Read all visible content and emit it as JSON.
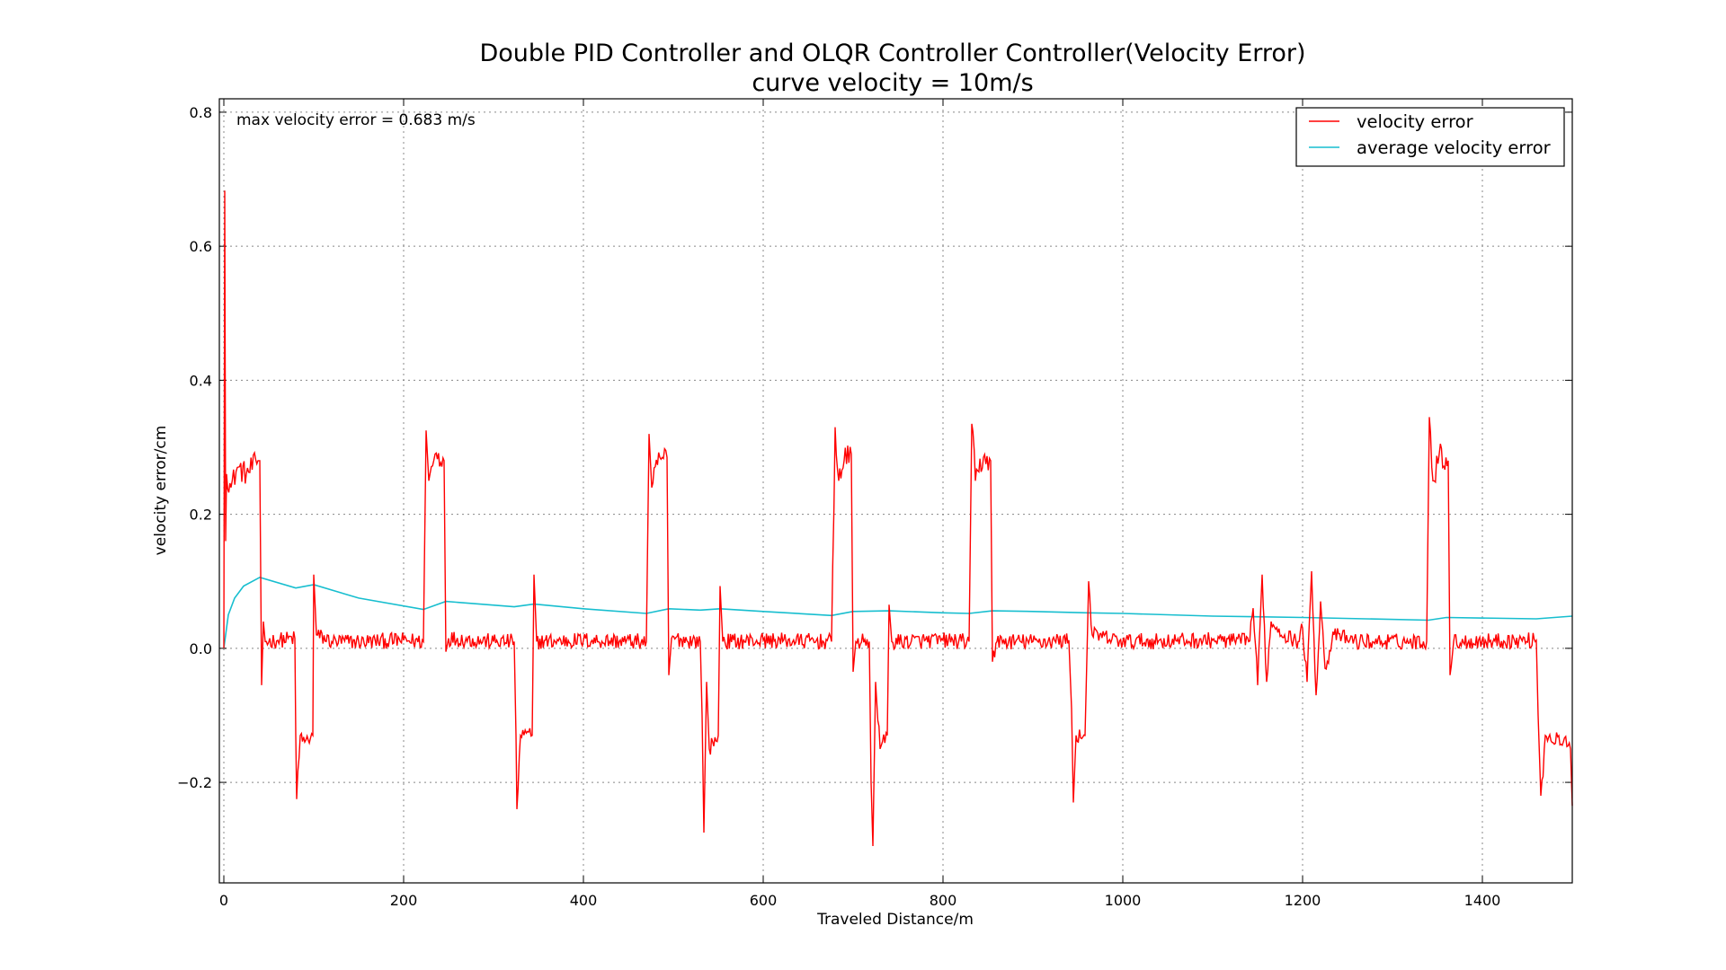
{
  "chart_data": {
    "type": "line",
    "title": "Double PID Controller and OLQR Controller Controller(Velocity Error)",
    "subtitle": "curve velocity = 10m/s",
    "xlabel": "Traveled Distance/m",
    "ylabel": "velocity error/cm",
    "xlim": [
      -5,
      1500
    ],
    "ylim": [
      -0.35,
      0.82
    ],
    "xticks": [
      0,
      200,
      400,
      600,
      800,
      1000,
      1200,
      1400
    ],
    "xtick_labels": [
      "0",
      "200",
      "400",
      "600",
      "800",
      "1000",
      "1200",
      "1400"
    ],
    "yticks": [
      -0.2,
      0.0,
      0.2,
      0.4,
      0.6,
      0.8
    ],
    "ytick_labels": [
      "−0.2",
      "0.0",
      "0.2",
      "0.4",
      "0.6",
      "0.8"
    ],
    "grid": true,
    "legend_position": "top-right",
    "annotation": "max velocity error = 0.683 m/s",
    "series": [
      {
        "name": "velocity error",
        "color": "#ff0000",
        "points": [
          [
            0,
            0.0
          ],
          [
            1,
            0.683
          ],
          [
            2,
            0.16
          ],
          [
            3,
            0.26
          ],
          [
            8,
            0.24
          ],
          [
            15,
            0.27
          ],
          [
            25,
            0.26
          ],
          [
            38,
            0.28
          ],
          [
            40,
            0.28
          ],
          [
            42,
            -0.055
          ],
          [
            44,
            0.04
          ],
          [
            46,
            0.01
          ],
          [
            60,
            0.012
          ],
          [
            79,
            0.015
          ],
          [
            80,
            -0.13
          ],
          [
            81,
            -0.225
          ],
          [
            85,
            -0.13
          ],
          [
            90,
            -0.14
          ],
          [
            99,
            -0.13
          ],
          [
            100,
            0.11
          ],
          [
            103,
            0.02
          ],
          [
            120,
            0.01
          ],
          [
            150,
            0.01
          ],
          [
            200,
            0.012
          ],
          [
            222,
            0.01
          ],
          [
            225,
            0.325
          ],
          [
            228,
            0.25
          ],
          [
            235,
            0.29
          ],
          [
            245,
            0.28
          ],
          [
            247,
            -0.005
          ],
          [
            250,
            0.015
          ],
          [
            300,
            0.01
          ],
          [
            323,
            0.01
          ],
          [
            325,
            -0.13
          ],
          [
            326,
            -0.24
          ],
          [
            330,
            -0.13
          ],
          [
            343,
            -0.13
          ],
          [
            345,
            0.11
          ],
          [
            348,
            0.01
          ],
          [
            400,
            0.012
          ],
          [
            470,
            0.01
          ],
          [
            473,
            0.32
          ],
          [
            476,
            0.24
          ],
          [
            485,
            0.285
          ],
          [
            493,
            0.285
          ],
          [
            495,
            -0.04
          ],
          [
            498,
            0.015
          ],
          [
            530,
            0.01
          ],
          [
            532,
            -0.1
          ],
          [
            534,
            -0.275
          ],
          [
            537,
            -0.05
          ],
          [
            540,
            -0.15
          ],
          [
            550,
            -0.13
          ],
          [
            552,
            0.093
          ],
          [
            555,
            0.01
          ],
          [
            600,
            0.012
          ],
          [
            676,
            0.01
          ],
          [
            680,
            0.33
          ],
          [
            684,
            0.25
          ],
          [
            690,
            0.28
          ],
          [
            698,
            0.29
          ],
          [
            700,
            -0.035
          ],
          [
            703,
            0.01
          ],
          [
            718,
            0.01
          ],
          [
            720,
            -0.2
          ],
          [
            722,
            -0.295
          ],
          [
            725,
            -0.05
          ],
          [
            730,
            -0.15
          ],
          [
            738,
            -0.13
          ],
          [
            740,
            0.065
          ],
          [
            743,
            0.01
          ],
          [
            800,
            0.012
          ],
          [
            829,
            0.01
          ],
          [
            832,
            0.335
          ],
          [
            836,
            0.25
          ],
          [
            845,
            0.285
          ],
          [
            853,
            0.28
          ],
          [
            855,
            -0.02
          ],
          [
            860,
            0.01
          ],
          [
            900,
            0.01
          ],
          [
            940,
            0.012
          ],
          [
            943,
            -0.09
          ],
          [
            945,
            -0.23
          ],
          [
            948,
            -0.13
          ],
          [
            958,
            -0.13
          ],
          [
            962,
            0.1
          ],
          [
            966,
            0.02
          ],
          [
            1000,
            0.01
          ],
          [
            1100,
            0.012
          ],
          [
            1140,
            0.01
          ],
          [
            1145,
            0.06
          ],
          [
            1150,
            -0.055
          ],
          [
            1155,
            0.11
          ],
          [
            1160,
            -0.05
          ],
          [
            1165,
            0.04
          ],
          [
            1180,
            0.02
          ],
          [
            1195,
            0.01
          ],
          [
            1200,
            0.03
          ],
          [
            1205,
            -0.05
          ],
          [
            1210,
            0.115
          ],
          [
            1215,
            -0.07
          ],
          [
            1220,
            0.07
          ],
          [
            1225,
            -0.03
          ],
          [
            1235,
            0.02
          ],
          [
            1260,
            0.01
          ],
          [
            1338,
            0.01
          ],
          [
            1341,
            0.345
          ],
          [
            1345,
            0.25
          ],
          [
            1352,
            0.29
          ],
          [
            1362,
            0.28
          ],
          [
            1364,
            -0.04
          ],
          [
            1368,
            0.01
          ],
          [
            1460,
            0.012
          ],
          [
            1462,
            -0.1
          ],
          [
            1465,
            -0.22
          ],
          [
            1470,
            -0.13
          ],
          [
            1490,
            -0.14
          ],
          [
            1498,
            -0.15
          ],
          [
            1500,
            -0.235
          ]
        ]
      },
      {
        "name": "average velocity error",
        "color": "#17becf",
        "points": [
          [
            0,
            0.0
          ],
          [
            5,
            0.05
          ],
          [
            12,
            0.075
          ],
          [
            22,
            0.093
          ],
          [
            40,
            0.106
          ],
          [
            80,
            0.09
          ],
          [
            100,
            0.095
          ],
          [
            150,
            0.075
          ],
          [
            222,
            0.058
          ],
          [
            247,
            0.07
          ],
          [
            323,
            0.062
          ],
          [
            345,
            0.066
          ],
          [
            400,
            0.059
          ],
          [
            470,
            0.052
          ],
          [
            495,
            0.059
          ],
          [
            530,
            0.057
          ],
          [
            552,
            0.059
          ],
          [
            600,
            0.055
          ],
          [
            676,
            0.049
          ],
          [
            700,
            0.055
          ],
          [
            740,
            0.056
          ],
          [
            800,
            0.053
          ],
          [
            829,
            0.052
          ],
          [
            855,
            0.056
          ],
          [
            900,
            0.055
          ],
          [
            960,
            0.053
          ],
          [
            1000,
            0.052
          ],
          [
            1100,
            0.048
          ],
          [
            1200,
            0.046
          ],
          [
            1340,
            0.042
          ],
          [
            1360,
            0.046
          ],
          [
            1460,
            0.044
          ],
          [
            1500,
            0.048
          ]
        ]
      }
    ]
  }
}
